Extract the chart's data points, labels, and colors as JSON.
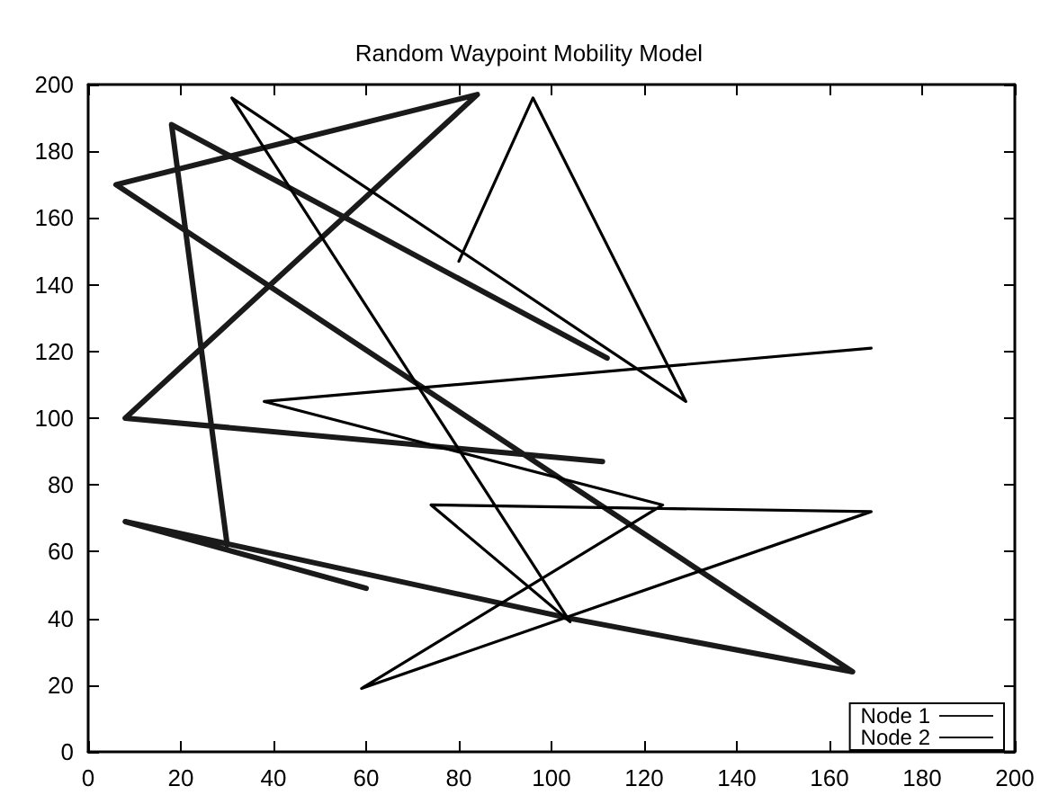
{
  "chart_data": {
    "type": "line",
    "title": "Random Waypoint Mobility Model",
    "xlim": [
      0,
      200
    ],
    "xticks": [
      0,
      20,
      40,
      60,
      80,
      100,
      120,
      140,
      160,
      180,
      200
    ],
    "ylim": [
      0,
      200
    ],
    "yticks": [
      0,
      20,
      40,
      60,
      80,
      100,
      120,
      140,
      160,
      180,
      200
    ],
    "grid": false,
    "legend": "bottom right",
    "marker": "none",
    "series": [
      {
        "name": "Node 1",
        "color": "#1a1a1a",
        "x": [
          60,
          8,
          104,
          165,
          6,
          84,
          8,
          111,
          null,
          30,
          18,
          112
        ],
        "values": [
          49,
          69,
          40,
          24,
          170,
          197,
          100,
          87,
          null,
          62,
          188,
          118
        ]
      },
      {
        "name": "Node 2",
        "color": "#000000",
        "x": [
          80,
          96,
          129,
          31,
          104,
          74,
          169,
          59,
          124,
          38,
          169
        ],
        "values": [
          147,
          196,
          105,
          196,
          39,
          74,
          72,
          19,
          74,
          105,
          121
        ]
      }
    ]
  }
}
